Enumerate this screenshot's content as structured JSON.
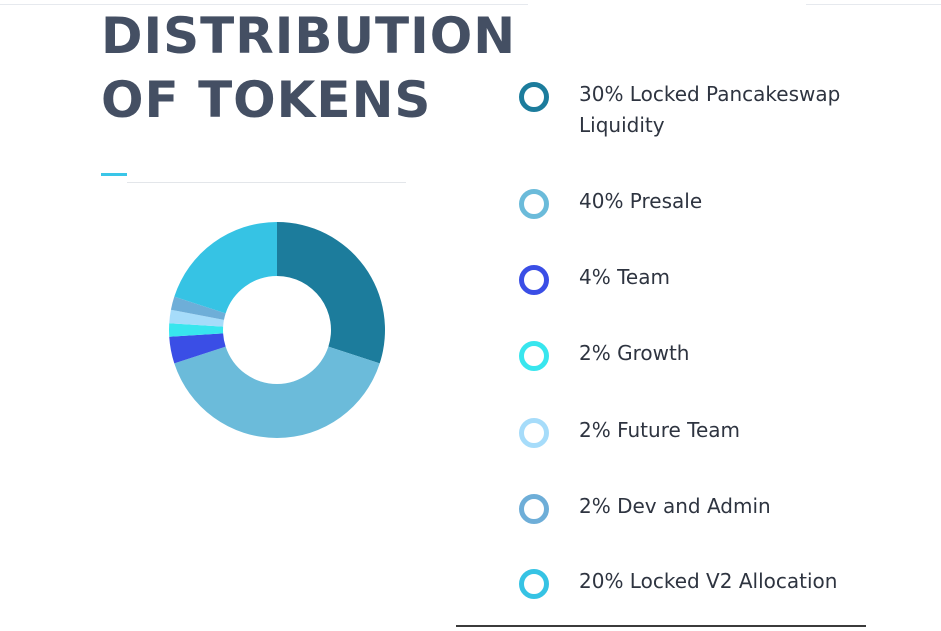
{
  "title": {
    "line1": "DISTRIBUTION",
    "line2": "OF TOKENS"
  },
  "colors": {
    "title": "#444f63",
    "accent": "#3ac6e8",
    "text": "#2e3440"
  },
  "legend": [
    {
      "label": "30% Locked Pancakeswap Liquidity",
      "color": "#1c7c9c"
    },
    {
      "label": "40% Presale",
      "color": "#6bbbda"
    },
    {
      "label": "4% Team",
      "color": "#3a4ee6"
    },
    {
      "label": "2% Growth",
      "color": "#38e6ee"
    },
    {
      "label": "2% Future Team",
      "color": "#a6dcfa"
    },
    {
      "label": "2% Dev and Admin",
      "color": "#6eaed8"
    },
    {
      "label": "20% Locked V2 Allocation",
      "color": "#36c3e4"
    }
  ],
  "chart_data": {
    "type": "pie",
    "donut": true,
    "categories": [
      "30% Locked Pancakeswap Liquidity",
      "40% Presale",
      "4% Team",
      "2% Growth",
      "2% Future Team",
      "2% Dev and Admin",
      "20% Locked V2 Allocation"
    ],
    "values": [
      30,
      40,
      4,
      2,
      2,
      2,
      20
    ],
    "colors": [
      "#1c7c9c",
      "#6bbbda",
      "#3a4ee6",
      "#38e6ee",
      "#a6dcfa",
      "#6eaed8",
      "#36c3e4"
    ],
    "title": "DISTRIBUTION OF TOKENS",
    "legend_position": "right"
  }
}
